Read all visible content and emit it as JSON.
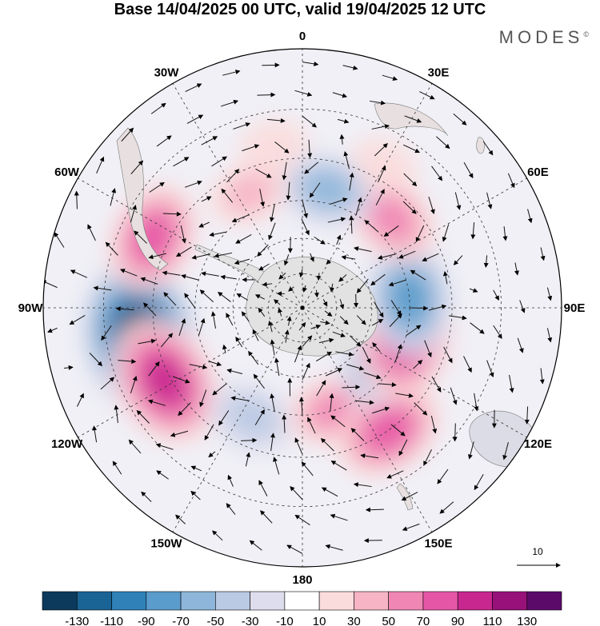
{
  "title": "Base 14/04/2025 00 UTC, valid 19/04/2025 12 UTC",
  "brand": "MODES",
  "brand_mark": "©",
  "longitude_labels": [
    {
      "id": "lon-0",
      "text": "0"
    },
    {
      "id": "lon-30e",
      "text": "30E"
    },
    {
      "id": "lon-60e",
      "text": "60E"
    },
    {
      "id": "lon-90e",
      "text": "90E"
    },
    {
      "id": "lon-120e",
      "text": "120E"
    },
    {
      "id": "lon-150e",
      "text": "150E"
    },
    {
      "id": "lon-180",
      "text": "180"
    },
    {
      "id": "lon-150w",
      "text": "150W"
    },
    {
      "id": "lon-120w",
      "text": "120W"
    },
    {
      "id": "lon-90w",
      "text": "90W"
    },
    {
      "id": "lon-60w",
      "text": "60W"
    },
    {
      "id": "lon-30w",
      "text": "30W"
    }
  ],
  "reference_vector": {
    "label": "10"
  },
  "colorbar": {
    "colors": [
      "#0b3a5c",
      "#1a6395",
      "#2f81b8",
      "#5a9ccb",
      "#8db6da",
      "#bac9e4",
      "#dedded",
      "#ffffff",
      "#fbdcdc",
      "#f6b4c4",
      "#ef86b4",
      "#e656a6",
      "#c8278f",
      "#98107a",
      "#5b0a6a"
    ],
    "tick_labels": [
      "-130",
      "-110",
      "-90",
      "-70",
      "-50",
      "-30",
      "-10",
      "10",
      "30",
      "50",
      "70",
      "90",
      "110",
      "130"
    ]
  },
  "anomaly_centers": [
    {
      "lon": -100,
      "lat": -25,
      "value": -130
    },
    {
      "lon": -118,
      "lat": -28,
      "value": 100
    },
    {
      "lon": -65,
      "lat": -25,
      "value": 75
    },
    {
      "lon": -155,
      "lat": -40,
      "value": -45
    },
    {
      "lon": 163,
      "lat": -45,
      "value": 50
    },
    {
      "lon": 145,
      "lat": -30,
      "value": 75
    },
    {
      "lon": 120,
      "lat": -50,
      "value": -70
    },
    {
      "lon": 105,
      "lat": -45,
      "value": 95
    },
    {
      "lon": 85,
      "lat": -45,
      "value": -80
    },
    {
      "lon": 45,
      "lat": -38,
      "value": 60
    },
    {
      "lon": 12,
      "lat": -40,
      "value": -55
    },
    {
      "lon": -25,
      "lat": -38,
      "value": 35
    },
    {
      "lon": 30,
      "lat": -25,
      "value": 20
    },
    {
      "lon": -10,
      "lat": -25,
      "value": 20
    }
  ]
}
